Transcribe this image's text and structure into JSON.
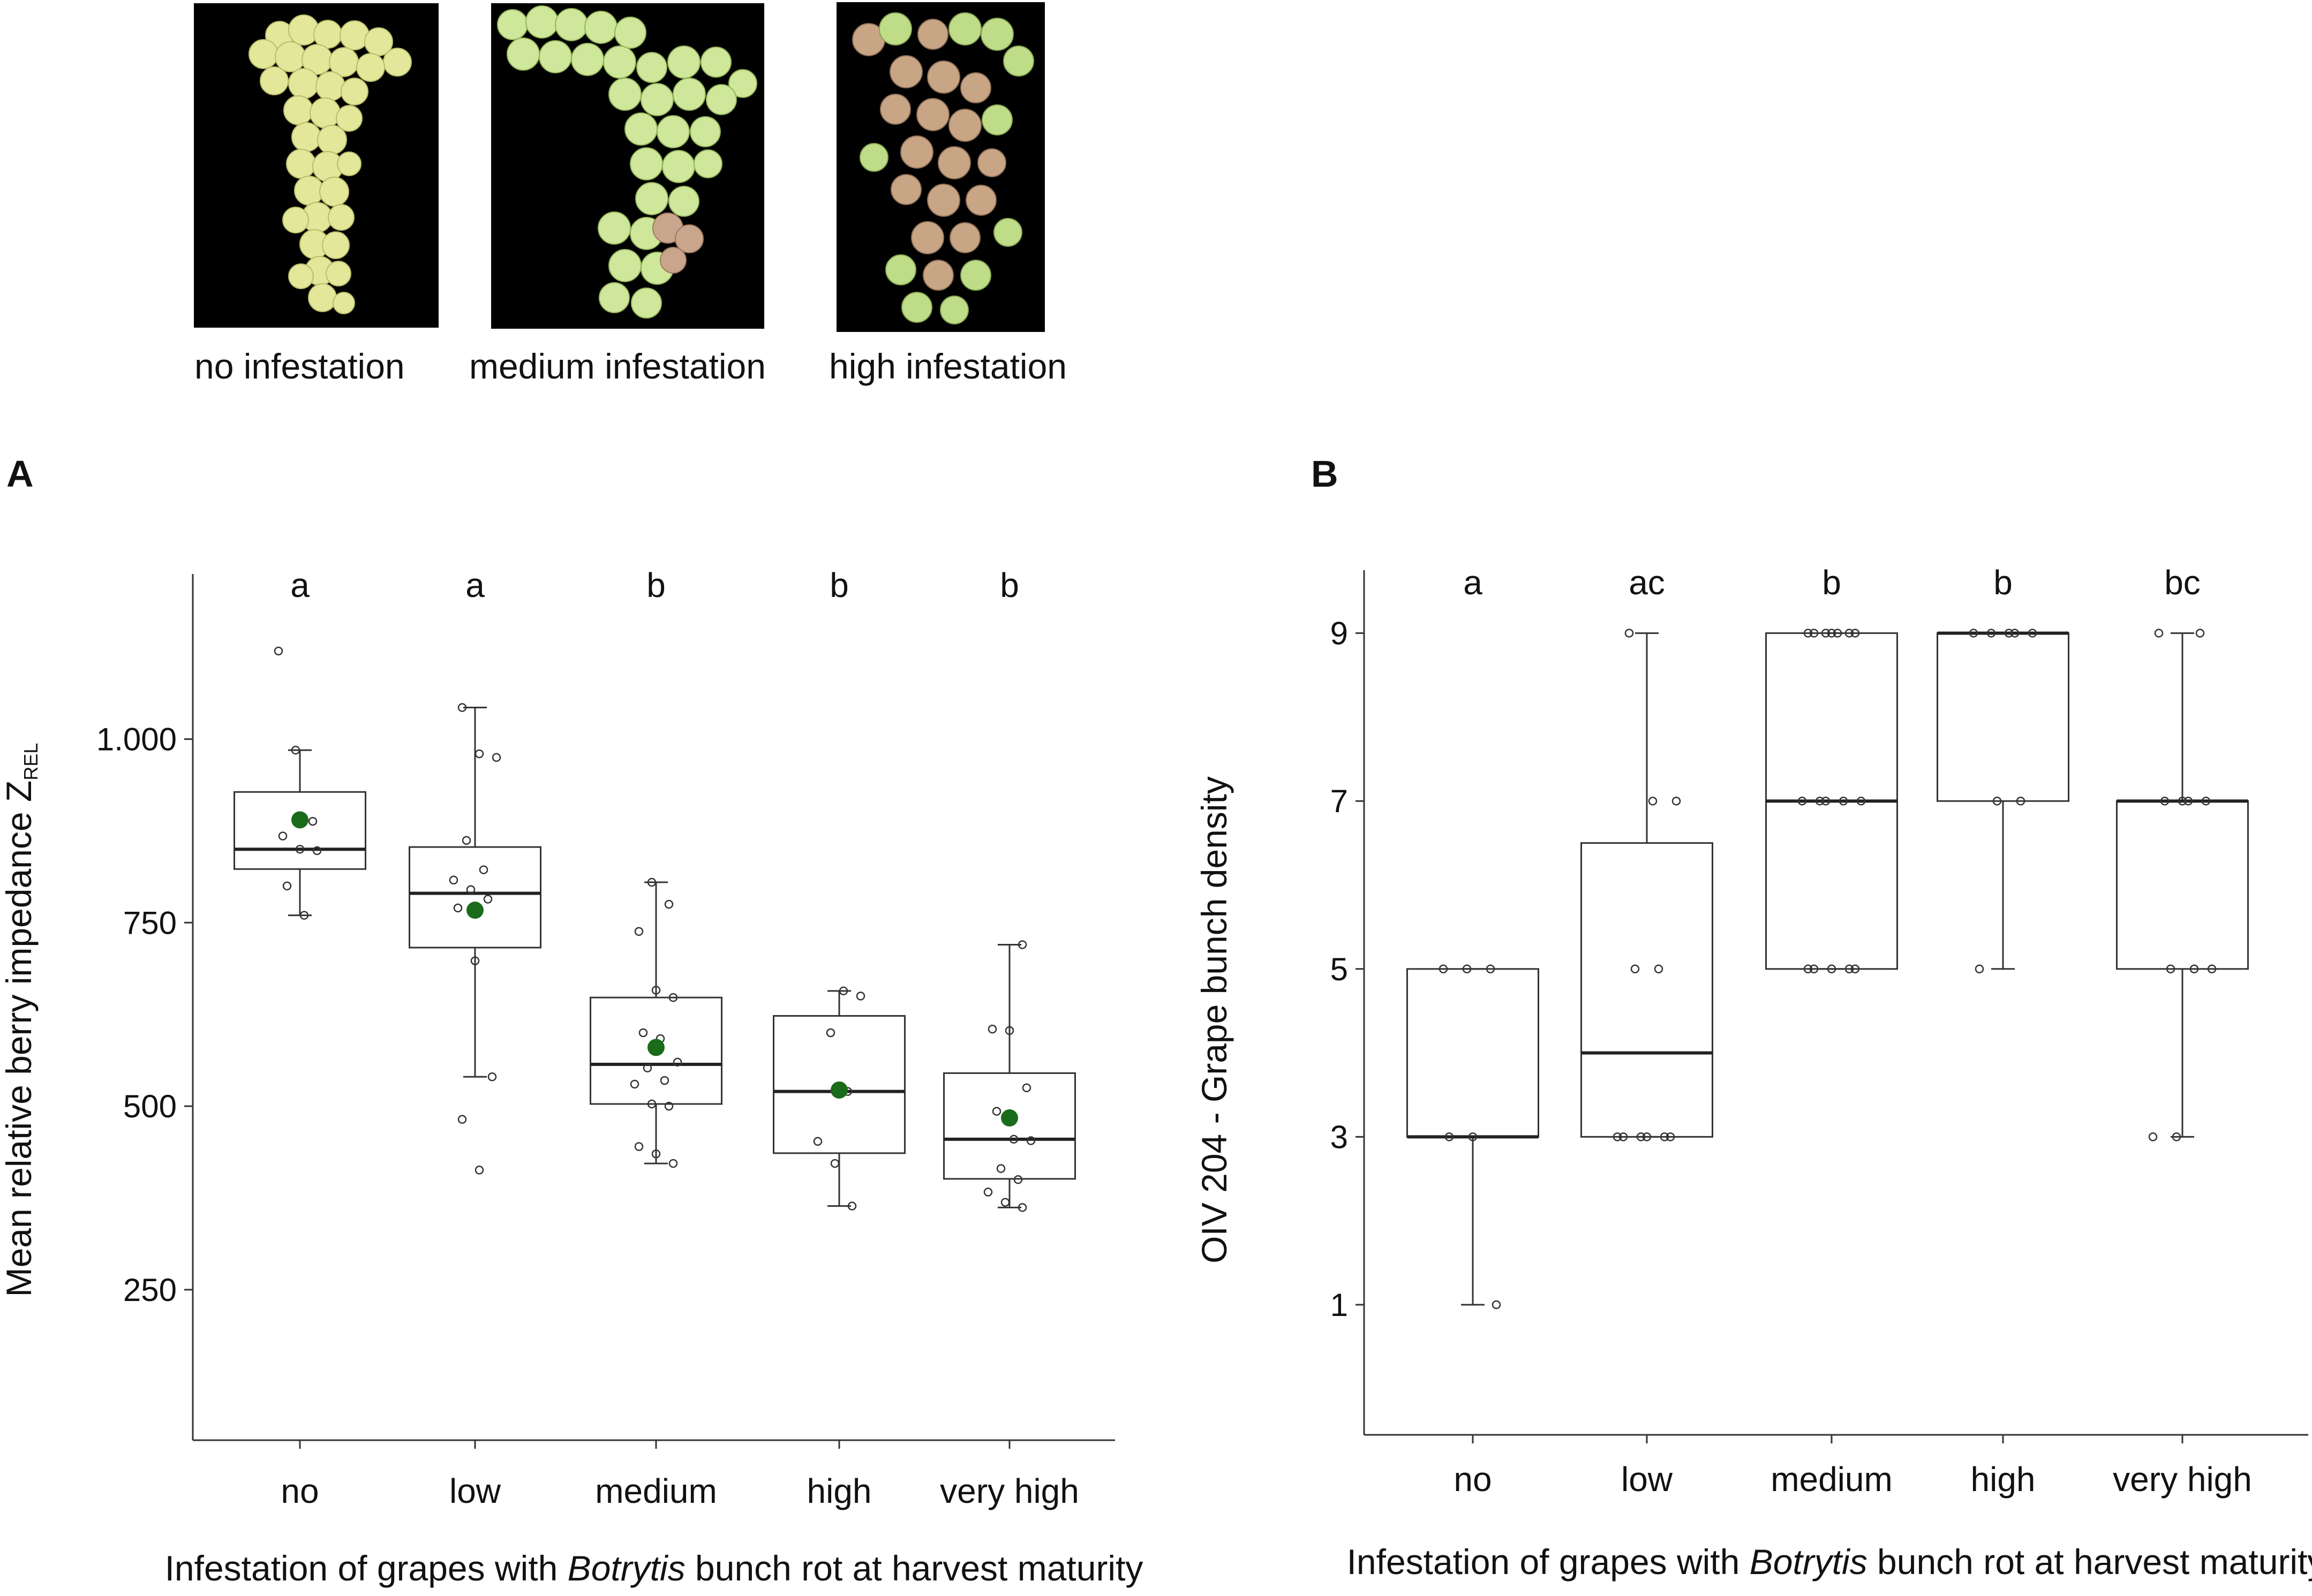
{
  "photos": {
    "captions": [
      "no infestation",
      "medium infestation",
      "high infestation"
    ]
  },
  "panels": [
    "A",
    "B"
  ],
  "colors": {
    "mean_marker": "#1a6b1a",
    "box_stroke": "#333333",
    "photo_bg": "#000000"
  },
  "chart_data": [
    {
      "type": "box",
      "panel": "A",
      "title": "",
      "ylabel_main": "Mean relative berry impedance Z",
      "ylabel_sub": "REL",
      "xlabel_prefix": "Infestation of grapes with ",
      "xlabel_italic": "Botrytis",
      "xlabel_suffix": " bunch rot at harvest maturity",
      "categories": [
        "no",
        "low",
        "medium",
        "high",
        "very high"
      ],
      "y_ticks": [
        250,
        500,
        750,
        1000
      ],
      "y_tick_labels": [
        "250",
        "500",
        "750",
        "1.000"
      ],
      "ylim": [
        45,
        1225
      ],
      "grid": false,
      "letters": [
        "a",
        "a",
        "b",
        "b",
        "b"
      ],
      "boxes": [
        {
          "min": 760,
          "q1": 823,
          "median": 850,
          "q3": 928,
          "max": 985,
          "mean": 890,
          "points": [
            1120,
            985,
            888,
            868,
            850,
            848,
            800,
            760
          ]
        },
        {
          "min": 540,
          "q1": 716,
          "median": 790,
          "q3": 853,
          "max": 1043,
          "mean": 767,
          "points": [
            1043,
            980,
            975,
            862,
            822,
            808,
            795,
            782,
            770,
            698,
            540,
            482,
            413
          ]
        },
        {
          "min": 422,
          "q1": 503,
          "median": 557,
          "q3": 648,
          "max": 805,
          "mean": 580,
          "points": [
            805,
            775,
            738,
            658,
            648,
            600,
            592,
            560,
            552,
            535,
            530,
            503,
            500,
            445,
            435,
            422
          ]
        },
        {
          "min": 364,
          "q1": 436,
          "median": 520,
          "q3": 623,
          "max": 657,
          "mean": 522,
          "points": [
            657,
            650,
            600,
            520,
            452,
            422,
            364
          ]
        },
        {
          "min": 362,
          "q1": 401,
          "median": 455,
          "q3": 545,
          "max": 720,
          "mean": 484,
          "points": [
            720,
            605,
            603,
            525,
            493,
            455,
            453,
            415,
            400,
            383,
            369,
            362
          ]
        }
      ]
    },
    {
      "type": "box",
      "panel": "B",
      "title": "",
      "ylabel": "OIV 204 - Grape bunch density",
      "xlabel_prefix": "Infestation of grapes with ",
      "xlabel_italic": "Botrytis",
      "xlabel_suffix": " bunch rot at harvest maturity",
      "categories": [
        "no",
        "low",
        "medium",
        "high",
        "very high"
      ],
      "y_ticks": [
        1,
        3,
        5,
        7,
        9
      ],
      "y_tick_labels": [
        "1",
        "3",
        "5",
        "7",
        "9"
      ],
      "ylim": [
        -0.55,
        9.75
      ],
      "grid": false,
      "letters": [
        "a",
        "ac",
        "b",
        "b",
        "bc"
      ],
      "boxes": [
        {
          "min": 1,
          "q1": 3,
          "median": 3,
          "q3": 5,
          "max": 5,
          "points": [
            5,
            5,
            5,
            3,
            3,
            1
          ]
        },
        {
          "min": 3,
          "q1": 3,
          "median": 4,
          "q3": 6.5,
          "max": 9,
          "points": [
            9,
            7,
            7,
            5,
            5,
            3,
            3,
            3,
            3,
            3,
            3
          ]
        },
        {
          "min": 5,
          "q1": 5,
          "median": 7,
          "q3": 9,
          "max": 9,
          "points": [
            9,
            9,
            9,
            9,
            9,
            9,
            9,
            7,
            7,
            7,
            7,
            7,
            5,
            5,
            5,
            5,
            5
          ]
        },
        {
          "min": 5,
          "q1": 7,
          "median": 9,
          "q3": 9,
          "max": 9,
          "points": [
            9,
            9,
            9,
            9,
            9,
            7,
            7,
            5
          ]
        },
        {
          "min": 3,
          "q1": 5,
          "median": 7,
          "q3": 7,
          "max": 9,
          "points": [
            9,
            9,
            7,
            7,
            7,
            7,
            5,
            5,
            5,
            3,
            3
          ]
        }
      ]
    }
  ]
}
